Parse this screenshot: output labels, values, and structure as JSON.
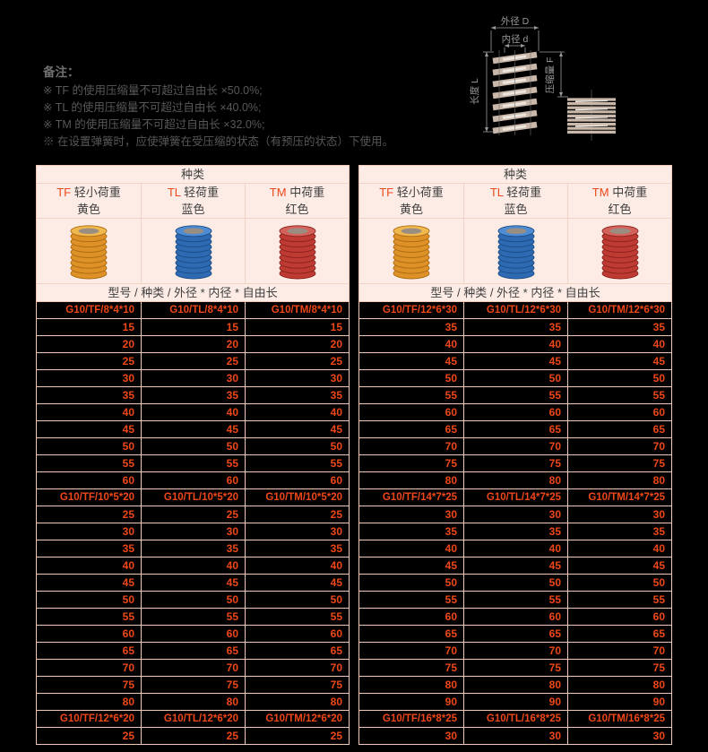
{
  "notes": {
    "title": "备注：",
    "items": [
      "※ TF 的使用压缩量不可超过自由长 ×50.0%;",
      "※ TL 的使用压缩量不可超过自由长 ×40.0%;",
      "※ TM 的使用压缩量不可超过自由长 ×32.0%;",
      "※ 在设置弹簧时，应使弹簧在受压缩的状态（有预压的状态）下使用。"
    ]
  },
  "diagram": {
    "outer_diameter_label": "外径 D",
    "inner_diameter_label": "内径 d",
    "length_label": "长度 L",
    "compression_label": "压缩量 F"
  },
  "colors": {
    "accent": "#e8481c",
    "value_text": "#ee4718",
    "header_bg": "#fdece5",
    "border": "#f2c8b8",
    "springs": {
      "yellow": {
        "main": "#de9126",
        "dark": "#a96a12",
        "light": "#f1b84d"
      },
      "blue": {
        "main": "#2d6ab2",
        "dark": "#1b4b85",
        "light": "#4e8bd2"
      },
      "red": {
        "main": "#be3b33",
        "dark": "#8c211c",
        "light": "#d4625c"
      }
    }
  },
  "tables": [
    {
      "type_header": "种类",
      "spec_header": "型号 / 种类 / 外径 * 内径 * 自由长",
      "columns": [
        {
          "code": "TF",
          "load": "轻小荷重",
          "color_name": "黄色",
          "spring": "yellow"
        },
        {
          "code": "TL",
          "load": "轻荷重",
          "color_name": "蓝色",
          "spring": "blue"
        },
        {
          "code": "TM",
          "load": "中荷重",
          "color_name": "红色",
          "spring": "red"
        }
      ],
      "rows": [
        {
          "kind": "model",
          "cells": [
            "G10/TF/8*4*10",
            "G10/TL/8*4*10",
            "G10/TM/8*4*10"
          ]
        },
        {
          "kind": "value",
          "cells": [
            "15",
            "15",
            "15"
          ]
        },
        {
          "kind": "value",
          "cells": [
            "20",
            "20",
            "20"
          ]
        },
        {
          "kind": "value",
          "cells": [
            "25",
            "25",
            "25"
          ]
        },
        {
          "kind": "value",
          "cells": [
            "30",
            "30",
            "30"
          ]
        },
        {
          "kind": "value",
          "cells": [
            "35",
            "35",
            "35"
          ]
        },
        {
          "kind": "value",
          "cells": [
            "40",
            "40",
            "40"
          ]
        },
        {
          "kind": "value",
          "cells": [
            "45",
            "45",
            "45"
          ]
        },
        {
          "kind": "value",
          "cells": [
            "50",
            "50",
            "50"
          ]
        },
        {
          "kind": "value",
          "cells": [
            "55",
            "55",
            "55"
          ]
        },
        {
          "kind": "value",
          "cells": [
            "60",
            "60",
            "60"
          ]
        },
        {
          "kind": "model",
          "cells": [
            "G10/TF/10*5*20",
            "G10/TL/10*5*20",
            "G10/TM/10*5*20"
          ]
        },
        {
          "kind": "value",
          "cells": [
            "25",
            "25",
            "25"
          ]
        },
        {
          "kind": "value",
          "cells": [
            "30",
            "30",
            "30"
          ]
        },
        {
          "kind": "value",
          "cells": [
            "35",
            "35",
            "35"
          ]
        },
        {
          "kind": "value",
          "cells": [
            "40",
            "40",
            "40"
          ]
        },
        {
          "kind": "value",
          "cells": [
            "45",
            "45",
            "45"
          ]
        },
        {
          "kind": "value",
          "cells": [
            "50",
            "50",
            "50"
          ]
        },
        {
          "kind": "value",
          "cells": [
            "55",
            "55",
            "55"
          ]
        },
        {
          "kind": "value",
          "cells": [
            "60",
            "60",
            "60"
          ]
        },
        {
          "kind": "value",
          "cells": [
            "65",
            "65",
            "65"
          ]
        },
        {
          "kind": "value",
          "cells": [
            "70",
            "70",
            "70"
          ]
        },
        {
          "kind": "value",
          "cells": [
            "75",
            "75",
            "75"
          ]
        },
        {
          "kind": "value",
          "cells": [
            "80",
            "80",
            "80"
          ]
        },
        {
          "kind": "model",
          "cells": [
            "G10/TF/12*6*20",
            "G10/TL/12*6*20",
            "G10/TM/12*6*20"
          ]
        },
        {
          "kind": "value",
          "cells": [
            "25",
            "25",
            "25"
          ]
        }
      ]
    },
    {
      "type_header": "种类",
      "spec_header": "型号 / 种类 / 外径 * 内径 * 自由长",
      "columns": [
        {
          "code": "TF",
          "load": "轻小荷重",
          "color_name": "黄色",
          "spring": "yellow"
        },
        {
          "code": "TL",
          "load": "轻荷重",
          "color_name": "蓝色",
          "spring": "blue"
        },
        {
          "code": "TM",
          "load": "中荷重",
          "color_name": "红色",
          "spring": "red"
        }
      ],
      "rows": [
        {
          "kind": "model",
          "cells": [
            "G10/TF/12*6*30",
            "G10/TL/12*6*30",
            "G10/TM/12*6*30"
          ]
        },
        {
          "kind": "value",
          "cells": [
            "35",
            "35",
            "35"
          ]
        },
        {
          "kind": "value",
          "cells": [
            "40",
            "40",
            "40"
          ]
        },
        {
          "kind": "value",
          "cells": [
            "45",
            "45",
            "45"
          ]
        },
        {
          "kind": "value",
          "cells": [
            "50",
            "50",
            "50"
          ]
        },
        {
          "kind": "value",
          "cells": [
            "55",
            "55",
            "55"
          ]
        },
        {
          "kind": "value",
          "cells": [
            "60",
            "60",
            "60"
          ]
        },
        {
          "kind": "value",
          "cells": [
            "65",
            "65",
            "65"
          ]
        },
        {
          "kind": "value",
          "cells": [
            "70",
            "70",
            "70"
          ]
        },
        {
          "kind": "value",
          "cells": [
            "75",
            "75",
            "75"
          ]
        },
        {
          "kind": "value",
          "cells": [
            "80",
            "80",
            "80"
          ]
        },
        {
          "kind": "model",
          "cells": [
            "G10/TF/14*7*25",
            "G10/TL/14*7*25",
            "G10/TM/14*7*25"
          ]
        },
        {
          "kind": "value",
          "cells": [
            "30",
            "30",
            "30"
          ]
        },
        {
          "kind": "value",
          "cells": [
            "35",
            "35",
            "35"
          ]
        },
        {
          "kind": "value",
          "cells": [
            "40",
            "40",
            "40"
          ]
        },
        {
          "kind": "value",
          "cells": [
            "45",
            "45",
            "45"
          ]
        },
        {
          "kind": "value",
          "cells": [
            "50",
            "50",
            "50"
          ]
        },
        {
          "kind": "value",
          "cells": [
            "55",
            "55",
            "55"
          ]
        },
        {
          "kind": "value",
          "cells": [
            "60",
            "60",
            "60"
          ]
        },
        {
          "kind": "value",
          "cells": [
            "65",
            "65",
            "65"
          ]
        },
        {
          "kind": "value",
          "cells": [
            "70",
            "70",
            "70"
          ]
        },
        {
          "kind": "value",
          "cells": [
            "75",
            "75",
            "75"
          ]
        },
        {
          "kind": "value",
          "cells": [
            "80",
            "80",
            "80"
          ]
        },
        {
          "kind": "value",
          "cells": [
            "90",
            "90",
            "90"
          ]
        },
        {
          "kind": "model",
          "cells": [
            "G10/TF/16*8*25",
            "G10/TL/16*8*25",
            "G10/TM/16*8*25"
          ]
        },
        {
          "kind": "value",
          "cells": [
            "30",
            "30",
            "30"
          ]
        }
      ]
    }
  ]
}
